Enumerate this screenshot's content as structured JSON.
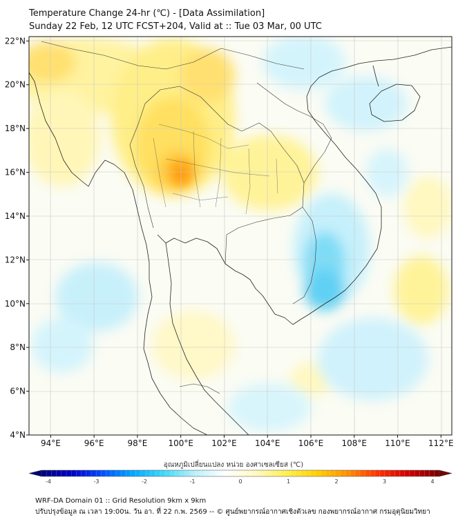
{
  "header": {
    "title": "Temperature Change 24-hr (℃) - [Data Assimilation]",
    "subtitle": "Sunday 22 Feb, 12 UTC FCST+204, Valid at :: Tue 03 Mar, 00 UTC"
  },
  "map": {
    "lon_range": [
      93,
      112.5
    ],
    "lat_range": [
      4,
      22.2
    ],
    "lon_ticks": [
      "94°E",
      "96°E",
      "98°E",
      "100°E",
      "102°E",
      "104°E",
      "106°E",
      "108°E",
      "110°E",
      "112°E"
    ],
    "lat_ticks": [
      "22°N",
      "20°N",
      "18°N",
      "16°N",
      "14°N",
      "12°N",
      "10°N",
      "8°N",
      "6°N",
      "4°N"
    ],
    "grid": true
  },
  "colorbar": {
    "title": "อุณหภูมิเปลี่ยนแปลง หน่วย องศาเซลเซียส (℃)",
    "min": -4,
    "max": 4,
    "tick_labels": [
      "-4",
      "-3",
      "-2",
      "-1",
      "0",
      "1",
      "2",
      "3",
      "4"
    ],
    "colors": [
      "#00007a",
      "#0000c8",
      "#0050ff",
      "#00a8ff",
      "#40d8f8",
      "#b8f0fc",
      "#ffffff",
      "#fffac0",
      "#fff050",
      "#ffd000",
      "#ff9000",
      "#ff3000",
      "#d00000",
      "#780000"
    ]
  },
  "footer": {
    "line1": "WRF-DA Domain 01 :: Grid Resolution 9km x 9km",
    "line2": "ปรับปรุงข้อมูล ณ เวลา 19:00น. วัน อา. ที่ 22 ก.พ. 2569 -- © ศูนย์พยากรณ์อากาศเชิงตัวเลข กองพยากรณ์อากาศ กรมอุตุนิยมวิทยา"
  }
}
